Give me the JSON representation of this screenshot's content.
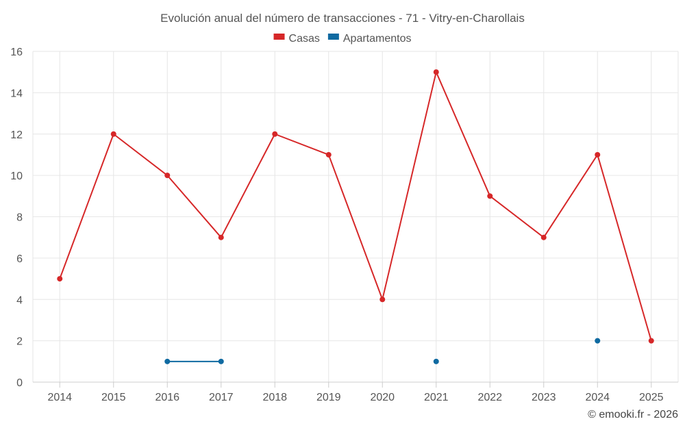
{
  "chart_data": {
    "type": "line",
    "title": "Evolución anual del número de transacciones - 71 - Vitry-en-Charollais",
    "categories": [
      "2014",
      "2015",
      "2016",
      "2017",
      "2018",
      "2019",
      "2020",
      "2021",
      "2022",
      "2023",
      "2024",
      "2025"
    ],
    "series": [
      {
        "name": "Casas",
        "color": "#d62728",
        "values": [
          5,
          12,
          10,
          7,
          12,
          11,
          4,
          15,
          9,
          7,
          11,
          2
        ]
      },
      {
        "name": "Apartamentos",
        "color": "#0f6aa1",
        "values": [
          null,
          null,
          1,
          1,
          null,
          null,
          null,
          1,
          null,
          null,
          2,
          null
        ]
      }
    ],
    "yticks": [
      "0",
      "2",
      "4",
      "6",
      "8",
      "10",
      "12",
      "14",
      "16"
    ],
    "ylim": [
      0,
      16
    ],
    "xlabel": "",
    "ylabel": "",
    "grid": true,
    "legend": "top-center"
  },
  "credit": "© emooki.fr - 2026"
}
